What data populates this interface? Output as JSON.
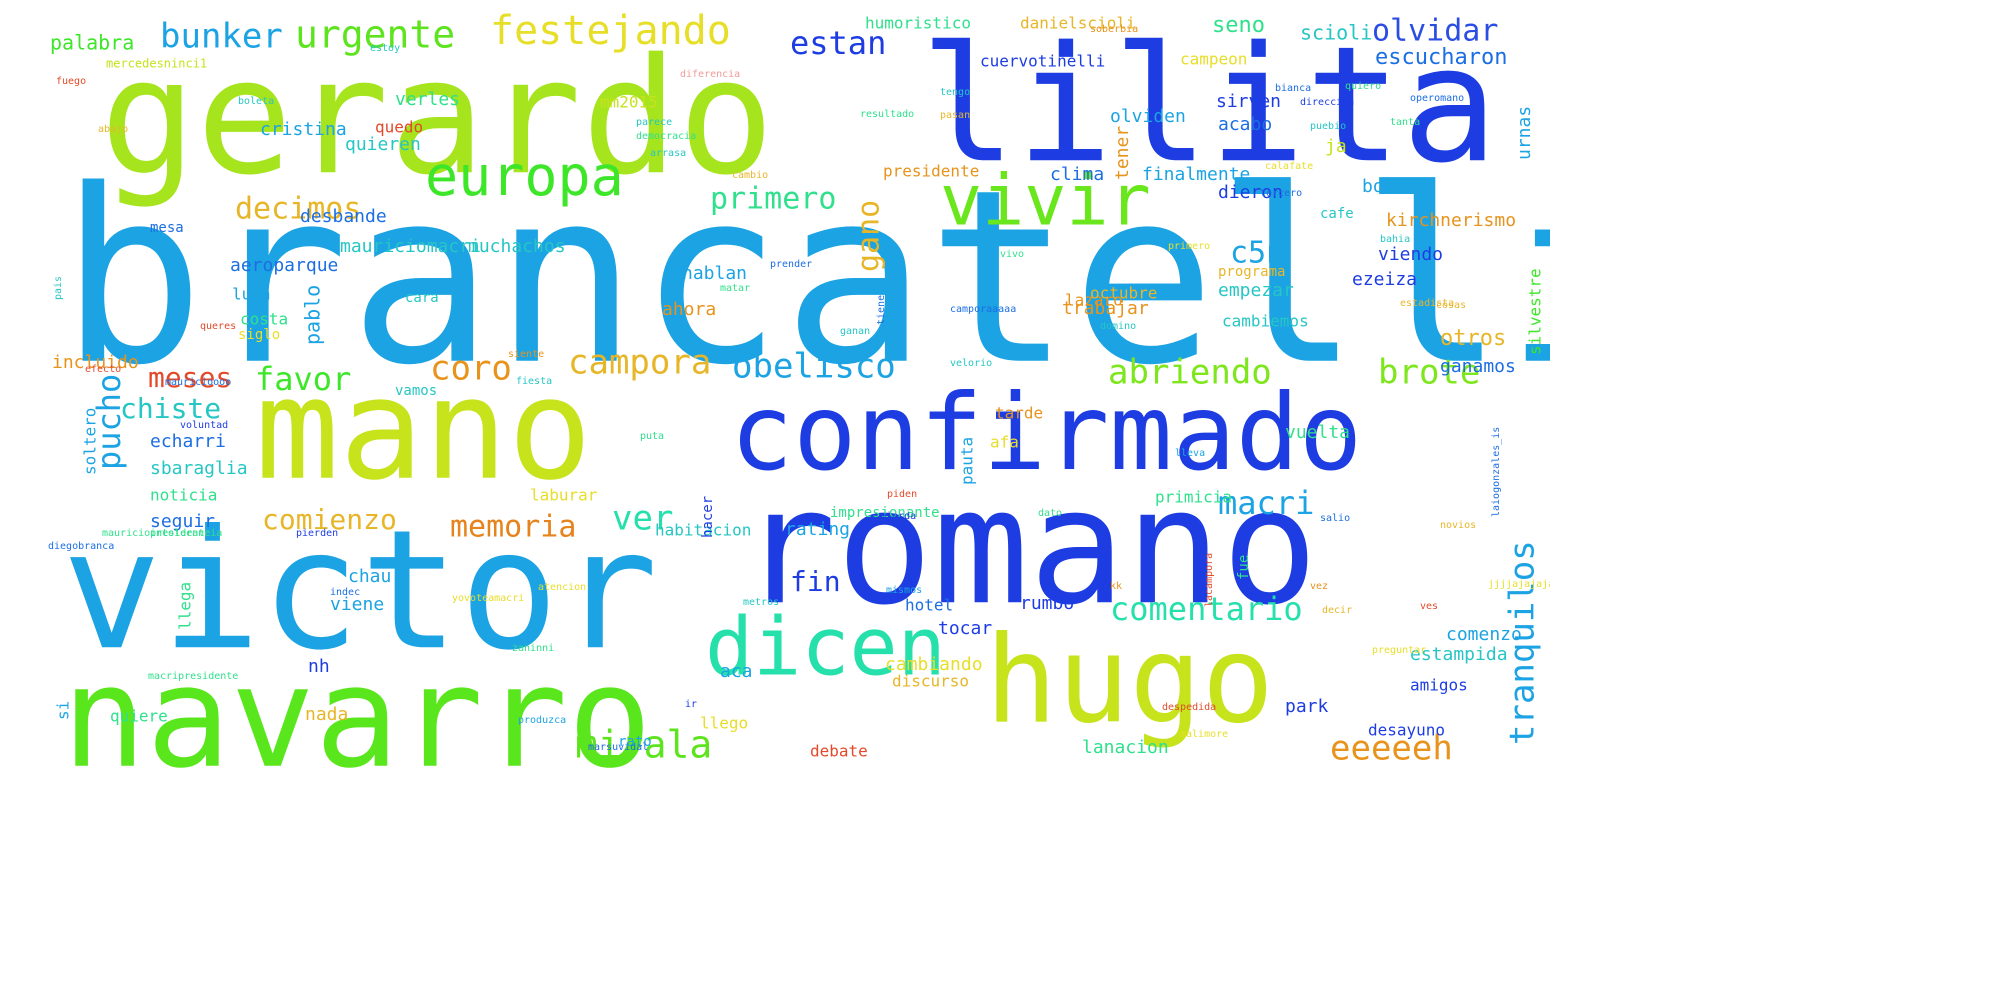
{
  "words": [
    {
      "t": "brancatelli",
      "c": "#1ca3e3"
    },
    {
      "t": "gerardo",
      "c": "#a6e41e"
    },
    {
      "t": "lilita",
      "c": "#1d3de3"
    },
    {
      "t": "victor",
      "c": "#1ca3e3"
    },
    {
      "t": "mano",
      "c": "#c6e31c"
    },
    {
      "t": "navarro",
      "c": "#5ae61c"
    },
    {
      "t": "romano",
      "c": "#1d3de3"
    },
    {
      "t": "confirmado",
      "c": "#1d3de3"
    },
    {
      "t": "hugo",
      "c": "#c6e31c"
    },
    {
      "t": "dicen",
      "c": "#26e0ac"
    },
    {
      "t": "europa",
      "c": "#3ee62a"
    },
    {
      "t": "vivir",
      "c": "#6ae61c"
    },
    {
      "t": "festejando",
      "c": "#e7de28"
    },
    {
      "t": "urgente",
      "c": "#5ee41e"
    },
    {
      "t": "bunker",
      "c": "#1ca3e3"
    },
    {
      "t": "estan",
      "c": "#1d3de3"
    },
    {
      "t": "olvidar",
      "c": "#2a4de3"
    },
    {
      "t": "palabra",
      "c": "#3ee62a"
    },
    {
      "t": "decimos",
      "c": "#e7b628"
    },
    {
      "t": "primero",
      "c": "#30e08c"
    },
    {
      "t": "gano",
      "c": "#e7b628"
    },
    {
      "t": "c5n",
      "c": "#1ca3e3"
    },
    {
      "t": "tranquilos",
      "c": "#1ca3e3"
    },
    {
      "t": "campora",
      "c": "#e7b628"
    },
    {
      "t": "obelisco",
      "c": "#1ca3e3"
    },
    {
      "t": "abriendo",
      "c": "#7ee61c"
    },
    {
      "t": "brote",
      "c": "#7ee61c"
    },
    {
      "t": "coro",
      "c": "#e7931c"
    },
    {
      "t": "favor",
      "c": "#3ee62a"
    },
    {
      "t": "meses",
      "c": "#e34a2a"
    },
    {
      "t": "pucho",
      "c": "#1ca3e3"
    },
    {
      "t": "chiste",
      "c": "#26c6c4"
    },
    {
      "t": "memoria",
      "c": "#e7831c"
    },
    {
      "t": "comienzo",
      "c": "#e7b628"
    },
    {
      "t": "ver",
      "c": "#26e0ac"
    },
    {
      "t": "mirala",
      "c": "#5ee41e"
    },
    {
      "t": "comentario",
      "c": "#26e0ac"
    },
    {
      "t": "macri",
      "c": "#1ca3e3"
    },
    {
      "t": "eeeeeh",
      "c": "#e7931c"
    },
    {
      "t": "fin",
      "c": "#1d3de3"
    },
    {
      "t": "seno",
      "c": "#30e08c"
    },
    {
      "t": "escucharon",
      "c": "#1c6ee3"
    },
    {
      "t": "scioli",
      "c": "#26c6c4"
    },
    {
      "t": "cuervotinelli",
      "c": "#1d3de3"
    },
    {
      "t": "humoristico",
      "c": "#30e08c"
    },
    {
      "t": "danielscioli",
      "c": "#e7b628"
    },
    {
      "t": "campeon",
      "c": "#e7de28"
    },
    {
      "t": "urnas",
      "c": "#1ca3e3"
    },
    {
      "t": "verles",
      "c": "#30e08c"
    },
    {
      "t": "mm2015",
      "c": "#c6e31c"
    },
    {
      "t": "cristina",
      "c": "#1ca3e3"
    },
    {
      "t": "quedo",
      "c": "#e34a2a"
    },
    {
      "t": "quieren",
      "c": "#26c6c4"
    },
    {
      "t": "olviden",
      "c": "#1ca3e3"
    },
    {
      "t": "sirven",
      "c": "#1d3de3"
    },
    {
      "t": "acabo",
      "c": "#1c6ee3"
    },
    {
      "t": "tener",
      "c": "#e7931c"
    },
    {
      "t": "ja",
      "c": "#c6e31c"
    },
    {
      "t": "presidente",
      "c": "#e7931c"
    },
    {
      "t": "clima",
      "c": "#1c6ee3"
    },
    {
      "t": "finalmente",
      "c": "#1ca3e3"
    },
    {
      "t": "dieron",
      "c": "#1d3de3"
    },
    {
      "t": "bocina",
      "c": "#1ca3e3"
    },
    {
      "t": "kirchnerismo",
      "c": "#e7931c"
    },
    {
      "t": "desbande",
      "c": "#1c6ee3"
    },
    {
      "t": "mauriciomacri",
      "c": "#26c6c4"
    },
    {
      "t": "muchachos",
      "c": "#26c6c4"
    },
    {
      "t": "cafe",
      "c": "#26c6c4"
    },
    {
      "t": "viendo",
      "c": "#1d3de3"
    },
    {
      "t": "mesa",
      "c": "#1c6ee3"
    },
    {
      "t": "aeroparque",
      "c": "#1c6ee3"
    },
    {
      "t": "hablan",
      "c": "#1ca3e3"
    },
    {
      "t": "ezeiza",
      "c": "#1d3de3"
    },
    {
      "t": "programa",
      "c": "#e7b628"
    },
    {
      "t": "lazaro",
      "c": "#e7931c"
    },
    {
      "t": "octubre",
      "c": "#e7b628"
    },
    {
      "t": "luna",
      "c": "#1ca3e3"
    },
    {
      "t": "cara",
      "c": "#26c6c4"
    },
    {
      "t": "ahora",
      "c": "#e7931c"
    },
    {
      "t": "trabajar",
      "c": "#e7931c"
    },
    {
      "t": "empezar",
      "c": "#26c6c4"
    },
    {
      "t": "otros",
      "c": "#e7b628"
    },
    {
      "t": "pablo",
      "c": "#1ca3e3"
    },
    {
      "t": "costa",
      "c": "#30e08c"
    },
    {
      "t": "siglo",
      "c": "#e7de28"
    },
    {
      "t": "cambiemos",
      "c": "#26c6c4"
    },
    {
      "t": "silvestre",
      "c": "#3ee62a"
    },
    {
      "t": "incluido",
      "c": "#e7931c"
    },
    {
      "t": "vamos",
      "c": "#26c6c4"
    },
    {
      "t": "ganamos",
      "c": "#1c6ee3"
    },
    {
      "t": "echarri",
      "c": "#1c6ee3"
    },
    {
      "t": "sbaraglia",
      "c": "#26c6c4"
    },
    {
      "t": "noticia",
      "c": "#30e08c"
    },
    {
      "t": "seguir",
      "c": "#1c6ee3"
    },
    {
      "t": "vuelta",
      "c": "#30e08c"
    },
    {
      "t": "tarde",
      "c": "#e7931c"
    },
    {
      "t": "afa",
      "c": "#e7de28"
    },
    {
      "t": "pauta",
      "c": "#1ca3e3"
    },
    {
      "t": "soltero",
      "c": "#1ca3e3"
    },
    {
      "t": "laburar",
      "c": "#e7de28"
    },
    {
      "t": "rating",
      "c": "#1ca3e3"
    },
    {
      "t": "habitacion",
      "c": "#26c6c4"
    },
    {
      "t": "hacer",
      "c": "#1d3de3"
    },
    {
      "t": "primicia",
      "c": "#30e08c"
    },
    {
      "t": "fue",
      "c": "#30e08c"
    },
    {
      "t": "chau",
      "c": "#1ca3e3"
    },
    {
      "t": "viene",
      "c": "#1ca3e3"
    },
    {
      "t": "llega",
      "c": "#30e08c"
    },
    {
      "t": "hotel",
      "c": "#1c6ee3"
    },
    {
      "t": "rumbo",
      "c": "#1d3de3"
    },
    {
      "t": "tocar",
      "c": "#1d3de3"
    },
    {
      "t": "comenzo",
      "c": "#1ca3e3"
    },
    {
      "t": "estampida",
      "c": "#26c6c4"
    },
    {
      "t": "cambiando",
      "c": "#e7de28"
    },
    {
      "t": "discurso",
      "c": "#e7b628"
    },
    {
      "t": "nh",
      "c": "#1d3de3"
    },
    {
      "t": "aca",
      "c": "#1ca3e3"
    },
    {
      "t": "nada",
      "c": "#e7b628"
    },
    {
      "t": "llego",
      "c": "#e7de28"
    },
    {
      "t": "park",
      "c": "#1d3de3"
    },
    {
      "t": "amigos",
      "c": "#1d3de3"
    },
    {
      "t": "desayuno",
      "c": "#1d3de3"
    },
    {
      "t": "lanacion",
      "c": "#30e08c"
    },
    {
      "t": "debate",
      "c": "#e34a2a"
    },
    {
      "t": "rato",
      "c": "#1ca3e3"
    },
    {
      "t": "quiere",
      "c": "#30e08c"
    },
    {
      "t": "si",
      "c": "#1ca3e3"
    },
    {
      "t": "impresionante",
      "c": "#30e08c"
    },
    {
      "t": "estoy",
      "c": "#26c6c4"
    },
    {
      "t": "diferencia",
      "c": "#f39a9a"
    },
    {
      "t": "mercedesninci1",
      "c": "#c6e31c"
    },
    {
      "t": "fuego",
      "c": "#e34a2a"
    },
    {
      "t": "boleta",
      "c": "#26c6c4"
    },
    {
      "t": "abajo",
      "c": "#e7b628"
    },
    {
      "t": "parece",
      "c": "#26c6c4"
    },
    {
      "t": "democracia",
      "c": "#30e08c"
    },
    {
      "t": "arrasa",
      "c": "#26c6c4"
    },
    {
      "t": "resultado",
      "c": "#30e08c"
    },
    {
      "t": "tengo",
      "c": "#26c6c4"
    },
    {
      "t": "pasan",
      "c": "#e7b628"
    },
    {
      "t": "cambio",
      "c": "#e7b628"
    },
    {
      "t": "soberbia",
      "c": "#e7931c"
    },
    {
      "t": "quiero",
      "c": "#30e08c"
    },
    {
      "t": "bianca",
      "c": "#1c6ee3"
    },
    {
      "t": "operomano",
      "c": "#1c6ee3"
    },
    {
      "t": "tanta",
      "c": "#30e08c"
    },
    {
      "t": "direccion",
      "c": "#1d3de3"
    },
    {
      "t": "puebio",
      "c": "#26c6c4"
    },
    {
      "t": "tercero",
      "c": "#1c6ee3"
    },
    {
      "t": "calafate",
      "c": "#e7de28"
    },
    {
      "t": "primero",
      "c": "#e7de28"
    },
    {
      "t": "bahia",
      "c": "#26c6c4"
    },
    {
      "t": "vivo",
      "c": "#30e08c"
    },
    {
      "t": "prender",
      "c": "#1c6ee3"
    },
    {
      "t": "matar",
      "c": "#30e08c"
    },
    {
      "t": "camporaaaaa",
      "c": "#1c6ee3"
    },
    {
      "t": "estadista",
      "c": "#e7b628"
    },
    {
      "t": "domino",
      "c": "#26c6c4"
    },
    {
      "t": "cosas",
      "c": "#e7b628"
    },
    {
      "t": "pais",
      "c": "#26c6c4"
    },
    {
      "t": "queres",
      "c": "#e34a2a"
    },
    {
      "t": "ganan",
      "c": "#26c6c4"
    },
    {
      "t": "tiene",
      "c": "#1c6ee3"
    },
    {
      "t": "efecto",
      "c": "#e34a2a"
    },
    {
      "t": "mauricioooo",
      "c": "#1c6ee3"
    },
    {
      "t": "fiesta",
      "c": "#26c6c4"
    },
    {
      "t": "velorio",
      "c": "#26c6c4"
    },
    {
      "t": "siente",
      "c": "#e7931c"
    },
    {
      "t": "voluntad",
      "c": "#1d3de3"
    },
    {
      "t": "puta",
      "c": "#30e08c"
    },
    {
      "t": "lleva",
      "c": "#1ca3e3"
    },
    {
      "t": "piden",
      "c": "#e34a2a"
    },
    {
      "t": "mierda",
      "c": "#1d3de3"
    },
    {
      "t": "dato",
      "c": "#30e08c"
    },
    {
      "t": "salio",
      "c": "#1c6ee3"
    },
    {
      "t": "novios",
      "c": "#e7b628"
    },
    {
      "t": "mauriciopresidente",
      "c": "#30e08c"
    },
    {
      "t": "intolerancia",
      "c": "#30e08c"
    },
    {
      "t": "pierden",
      "c": "#1d3de3"
    },
    {
      "t": "diegobranca",
      "c": "#1c6ee3"
    },
    {
      "t": "metros",
      "c": "#26c6c4"
    },
    {
      "t": "mismos",
      "c": "#1ca3e3"
    },
    {
      "t": "atencion",
      "c": "#e7de28"
    },
    {
      "t": "indec",
      "c": "#1c6ee3"
    },
    {
      "t": "yovoteamacri",
      "c": "#e7de28"
    },
    {
      "t": "lacampora",
      "c": "#e34a2a"
    },
    {
      "t": "vez",
      "c": "#e7931c"
    },
    {
      "t": "kk",
      "c": "#e7931c"
    },
    {
      "t": "decir",
      "c": "#e7b628"
    },
    {
      "t": "zaninni",
      "c": "#30e08c"
    },
    {
      "t": "preguntar",
      "c": "#e7de28"
    },
    {
      "t": "macripresidente",
      "c": "#30e08c"
    },
    {
      "t": "ir",
      "c": "#1d3de3"
    },
    {
      "t": "despedida",
      "c": "#e34a2a"
    },
    {
      "t": "produzca",
      "c": "#1ca3e3"
    },
    {
      "t": "marsuvidal",
      "c": "#1c6ee3"
    },
    {
      "t": "malimore",
      "c": "#e7de28"
    },
    {
      "t": "ves",
      "c": "#e34a2a"
    },
    {
      "t": "laiogonzales_is",
      "c": "#1c6ee3"
    },
    {
      "t": "jjjjajajajaj",
      "c": "#e7de28"
    }
  ]
}
